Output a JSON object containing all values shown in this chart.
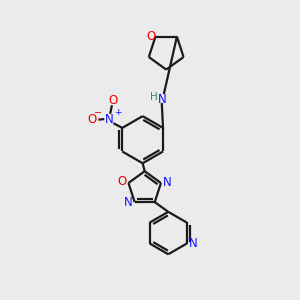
{
  "bg_color": "#ebebeb",
  "bond_color": "#1a1a1a",
  "bond_width": 1.6,
  "N_color": "#1414ff",
  "O_color": "#e80000",
  "H_color": "#3a8080",
  "figsize": [
    3.0,
    3.0
  ],
  "dpi": 100,
  "xlim": [
    0,
    10
  ],
  "ylim": [
    0,
    10
  ]
}
